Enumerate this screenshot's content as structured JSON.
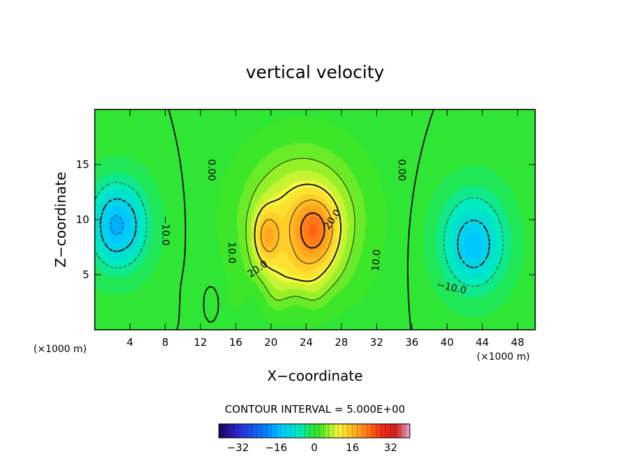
{
  "chart_data": {
    "type": "heatmap",
    "title": "vertical velocity",
    "xlabel": "X−coordinate",
    "ylabel": "Z−coordinate",
    "x_unit": "(×1000 m)",
    "y_unit": "(×1000 m)",
    "xlim": [
      0,
      50
    ],
    "ylim": [
      0,
      20
    ],
    "x_ticks": [
      4,
      8,
      12,
      16,
      20,
      24,
      28,
      32,
      36,
      40,
      44,
      48
    ],
    "y_ticks": [
      5,
      10,
      15
    ],
    "x_tick_labels": [
      "4",
      "8",
      "12",
      "16",
      "20",
      "24",
      "28",
      "32",
      "36",
      "40",
      "44",
      "48"
    ],
    "y_tick_labels": [
      "5",
      "10",
      "15"
    ],
    "field_features": [
      {
        "kind": "max",
        "x": 19.5,
        "z": 8.5,
        "value": 24
      },
      {
        "kind": "max",
        "x": 25,
        "z": 9,
        "value": 27
      },
      {
        "kind": "min",
        "x": 2.5,
        "z": 9.5,
        "value": -16
      },
      {
        "kind": "min",
        "x": 43,
        "z": 8,
        "value": -15
      }
    ],
    "contour_labels": [
      {
        "text": "0.00",
        "x": 13.2,
        "z": 14.5,
        "angle": 90
      },
      {
        "text": "0.00",
        "x": 34.8,
        "z": 14.5,
        "angle": 90
      },
      {
        "text": "10.0",
        "x": 15.5,
        "z": 7.0,
        "angle": 90
      },
      {
        "text": "20.0",
        "x": 18.5,
        "z": 5.5,
        "angle": -35
      },
      {
        "text": "20.0",
        "x": 27.0,
        "z": 10.0,
        "angle": -55
      },
      {
        "text": "10.0",
        "x": 32.0,
        "z": 6.3,
        "angle": -85
      },
      {
        "text": "−10.0",
        "x": 8.0,
        "z": 9.0,
        "angle": 90
      },
      {
        "text": "−10.0",
        "x": 40.5,
        "z": 3.8,
        "angle": 12
      }
    ],
    "contour_interval_text": "CONTOUR INTERVAL = 5.000E+00",
    "colorbar": {
      "min": -40,
      "max": 40,
      "ticks": [
        -32,
        -16,
        0,
        16,
        32
      ],
      "tick_labels": [
        "−32",
        "−16",
        "0",
        "16",
        "32"
      ]
    }
  }
}
